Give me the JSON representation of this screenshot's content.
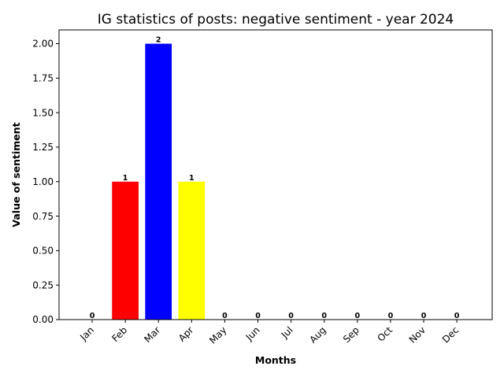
{
  "chart_data": {
    "type": "bar",
    "title": "IG statistics of posts: negative sentiment - year 2024",
    "xlabel": "Months",
    "ylabel": "Value of sentiment",
    "categories": [
      "Jan",
      "Feb",
      "Mar",
      "Apr",
      "May",
      "Jun",
      "Jul",
      "Aug",
      "Sep",
      "Oct",
      "Nov",
      "Dec"
    ],
    "values": [
      0,
      1,
      2,
      1,
      0,
      0,
      0,
      0,
      0,
      0,
      0,
      0
    ],
    "value_labels": [
      "0",
      "1",
      "2",
      "1",
      "0",
      "0",
      "0",
      "0",
      "0",
      "0",
      "0",
      "0"
    ],
    "bar_colors": [
      "#0000ff",
      "#ff0000",
      "#0000ff",
      "#ffff00",
      "#0000ff",
      "#0000ff",
      "#0000ff",
      "#0000ff",
      "#0000ff",
      "#0000ff",
      "#0000ff",
      "#0000ff"
    ],
    "ylim": [
      0,
      2.1
    ],
    "yticks": [
      "0.00",
      "0.25",
      "0.50",
      "0.75",
      "1.00",
      "1.25",
      "1.50",
      "1.75",
      "2.00"
    ],
    "grid": false,
    "legend": "none"
  }
}
